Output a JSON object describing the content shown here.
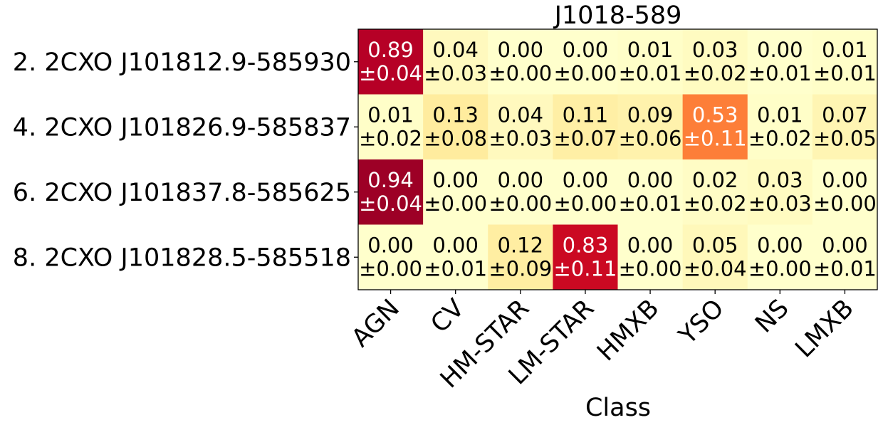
{
  "chart_data": {
    "type": "heatmap",
    "title": "J1018-589",
    "xlabel": "Class",
    "ylabel": "",
    "columns": [
      "AGN",
      "CV",
      "HM-STAR",
      "LM-STAR",
      "HMXB",
      "YSO",
      "NS",
      "LMXB"
    ],
    "rows": [
      "2. 2CXO J101812.9-585930",
      "4. 2CXO J101826.9-585837",
      "6. 2CXO J101837.8-585625",
      "8. 2CXO J101828.5-585518"
    ],
    "values": [
      [
        0.89,
        0.04,
        0.0,
        0.0,
        0.01,
        0.03,
        0.0,
        0.01
      ],
      [
        0.01,
        0.13,
        0.04,
        0.11,
        0.09,
        0.53,
        0.01,
        0.07
      ],
      [
        0.94,
        0.0,
        0.0,
        0.0,
        0.0,
        0.02,
        0.03,
        0.0
      ],
      [
        0.0,
        0.0,
        0.12,
        0.83,
        0.0,
        0.05,
        0.0,
        0.0
      ]
    ],
    "errors": [
      [
        0.04,
        0.03,
        0.0,
        0.0,
        0.01,
        0.02,
        0.01,
        0.01
      ],
      [
        0.02,
        0.08,
        0.03,
        0.07,
        0.06,
        0.11,
        0.02,
        0.05
      ],
      [
        0.04,
        0.0,
        0.0,
        0.0,
        0.01,
        0.02,
        0.03,
        0.0
      ],
      [
        0.0,
        0.01,
        0.09,
        0.11,
        0.0,
        0.04,
        0.0,
        0.01
      ]
    ],
    "colormap": "YlOrRd",
    "color_range": [
      0,
      1
    ],
    "light_text_color": "#ffffff",
    "dark_text_color": "#000000"
  }
}
